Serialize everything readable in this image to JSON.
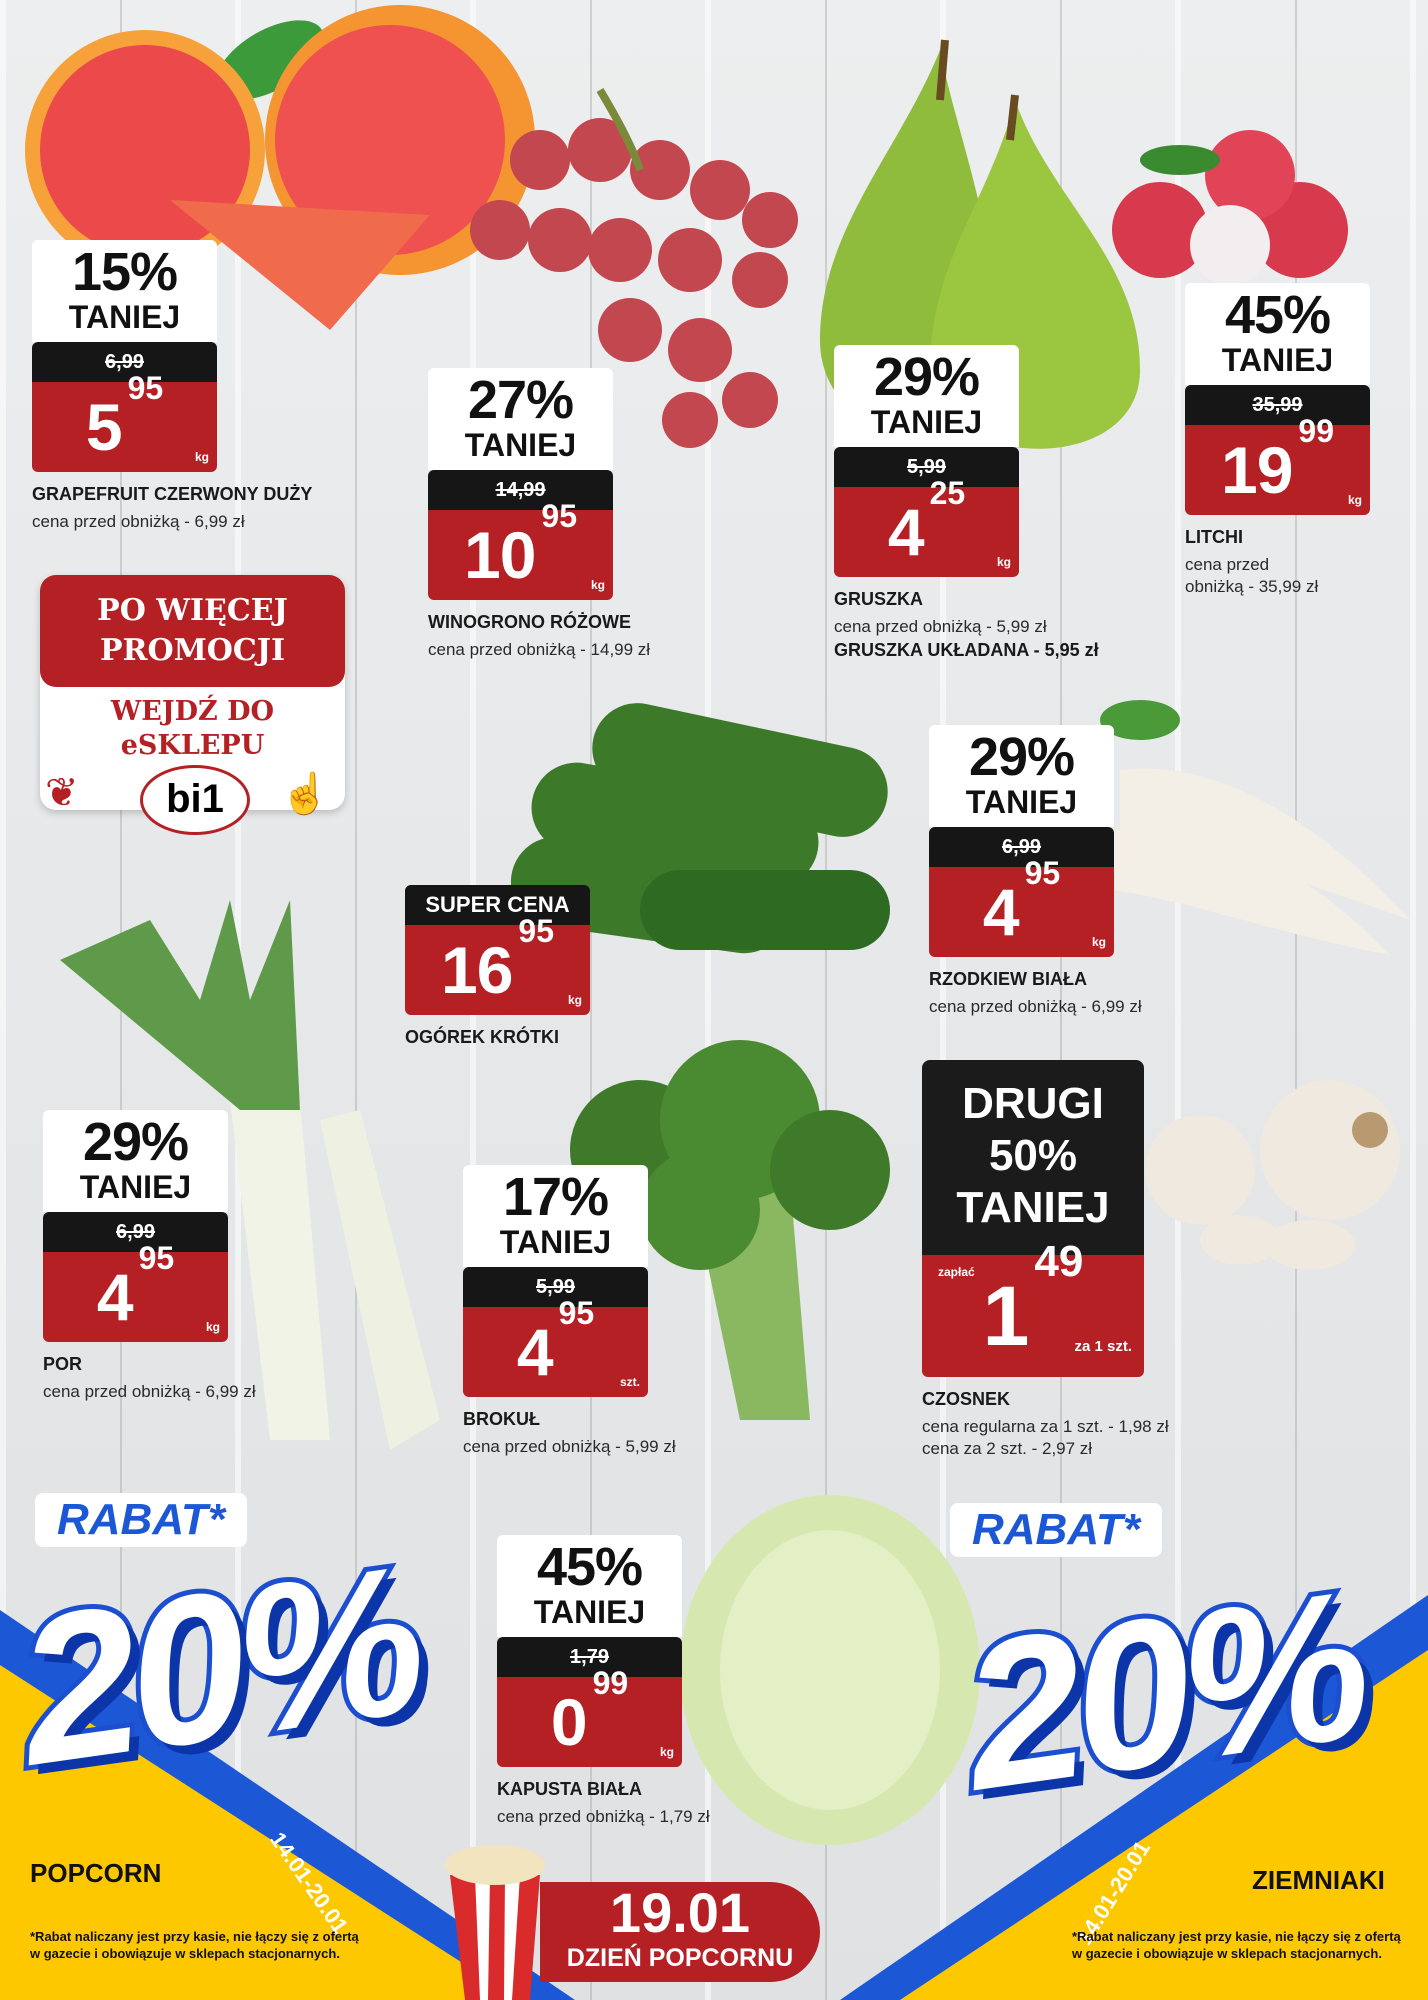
{
  "colors": {
    "price_red": "#b52025",
    "label_black": "#161616",
    "rabat_blue": "#1c57d6",
    "banner_yellow": "#fdc800"
  },
  "products": [
    {
      "id": "grapefruit",
      "discount": "15%",
      "taniej": "TANIEJ",
      "old_price": "6,99",
      "price_main": "5",
      "price_cents": "95",
      "unit": "kg",
      "name": "GRAPEFRUIT CZERWONY DUŻY",
      "sub": [
        "cena przed obniżką - 6,99 zł"
      ]
    },
    {
      "id": "winogrono",
      "discount": "27%",
      "taniej": "TANIEJ",
      "old_price": "14,99",
      "price_main": "10",
      "price_cents": "95",
      "unit": "kg",
      "name": "WINOGRONO RÓŻOWE",
      "sub": [
        "cena przed obniżką - 14,99 zł"
      ]
    },
    {
      "id": "gruszka",
      "discount": "29%",
      "taniej": "TANIEJ",
      "old_price": "5,99",
      "price_main": "4",
      "price_cents": "25",
      "unit": "kg",
      "name": "GRUSZKA",
      "sub": [
        "cena przed obniżką - 5,99 zł"
      ],
      "extra": "GRUSZKA UKŁADANA - 5,95 zł"
    },
    {
      "id": "litchi",
      "discount": "45%",
      "taniej": "TANIEJ",
      "old_price": "35,99",
      "price_main": "19",
      "price_cents": "99",
      "unit": "kg",
      "name": "LITCHI",
      "sub": [
        "cena przed",
        "obniżką - 35,99 zł"
      ]
    },
    {
      "id": "rzodkiew",
      "discount": "29%",
      "taniej": "TANIEJ",
      "old_price": "6,99",
      "price_main": "4",
      "price_cents": "95",
      "unit": "kg",
      "name": "RZODKIEW BIAŁA",
      "sub": [
        "cena przed obniżką - 6,99 zł"
      ]
    },
    {
      "id": "por",
      "discount": "29%",
      "taniej": "TANIEJ",
      "old_price": "6,99",
      "price_main": "4",
      "price_cents": "95",
      "unit": "kg",
      "name": "POR",
      "sub": [
        "cena przed obniżką - 6,99 zł"
      ]
    },
    {
      "id": "brokul",
      "discount": "17%",
      "taniej": "TANIEJ",
      "old_price": "5,99",
      "price_main": "4",
      "price_cents": "95",
      "unit": "szt.",
      "name": "BROKUŁ",
      "sub": [
        "cena przed obniżką - 5,99 zł"
      ]
    },
    {
      "id": "kapusta",
      "discount": "45%",
      "taniej": "TANIEJ",
      "old_price": "1,79",
      "price_main": "0",
      "price_cents": "99",
      "unit": "kg",
      "name": "KAPUSTA BIAŁA",
      "sub": [
        "cena przed obniżką - 1,79 zł"
      ]
    }
  ],
  "ogorek": {
    "label": "SUPER CENA",
    "price_main": "16",
    "price_cents": "95",
    "unit": "kg",
    "name": "OGÓREK KRÓTKI"
  },
  "czosnek": {
    "line1": "DRUGI",
    "line2": "50%",
    "line3": "TANIEJ",
    "zaplac": "zapłać",
    "price_main": "1",
    "price_cents": "49",
    "unit": "za 1 szt.",
    "name": "CZOSNEK",
    "sub": [
      "cena regularna za 1 szt. - 1,98 zł",
      "cena za 2 szt. - 2,97 zł"
    ]
  },
  "promo": {
    "line1": "PO WIĘCEJ",
    "line2": "PROMOCJI",
    "line3": "WEJDŹ DO",
    "line4": "eSKLEPU",
    "logo": "bi1"
  },
  "bottom": {
    "left": {
      "rabat": "RABAT*",
      "value": "20%",
      "dates": "14.01-20.01",
      "product": "POPCORN",
      "note": "*Rabat naliczany jest przy kasie, nie łączy się z ofertą w gazecie i obowiązuje w sklepach stacjonarnych."
    },
    "right": {
      "rabat": "RABAT*",
      "value": "20%",
      "dates": "14.01-20.01",
      "product": "ZIEMNIAKI",
      "note": "*Rabat naliczany jest przy kasie, nie łączy się z ofertą w gazecie i obowiązuje w sklepach stacjonarnych."
    },
    "popcorn_day": {
      "date": "19.01",
      "label": "DZIEŃ POPCORNU"
    }
  }
}
